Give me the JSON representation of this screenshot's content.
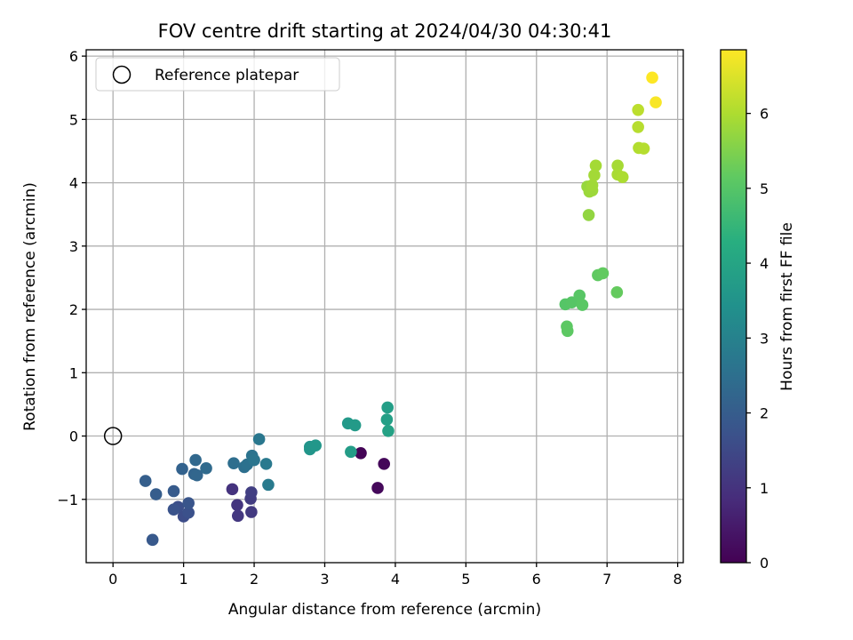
{
  "chart_data": {
    "type": "scatter",
    "title": "FOV centre drift starting at 2024/04/30 04:30:41",
    "xlabel": "Angular distance from reference (arcmin)",
    "ylabel": "Rotation from reference (arcmin)",
    "xlim": [
      -0.38,
      8.08
    ],
    "ylim": [
      -2.0,
      6.1
    ],
    "xticks": [
      0,
      1,
      2,
      3,
      4,
      5,
      6,
      7,
      8
    ],
    "yticks": [
      -1,
      0,
      1,
      2,
      3,
      4,
      5,
      6
    ],
    "xtick_labels": [
      "0",
      "1",
      "2",
      "3",
      "4",
      "5",
      "6",
      "7",
      "8"
    ],
    "ytick_labels": [
      "−1",
      "0",
      "1",
      "2",
      "3",
      "4",
      "5",
      "6"
    ],
    "grid": true,
    "legend": {
      "position": "upper-left",
      "entries": [
        {
          "label": "Reference platepar",
          "marker": "open-circle",
          "color": "#000000"
        }
      ]
    },
    "reference_point": {
      "x": 0,
      "y": 0
    },
    "colorbar": {
      "label": "Hours from first FF file",
      "colormap": "viridis",
      "min": 0,
      "max": 6.85,
      "ticks": [
        0,
        1,
        2,
        3,
        4,
        5,
        6
      ],
      "tick_labels": [
        "0",
        "1",
        "2",
        "3",
        "4",
        "5",
        "6"
      ]
    },
    "points": [
      {
        "x": 3.51,
        "y": -0.27,
        "c": 0.05
      },
      {
        "x": 3.84,
        "y": -0.44,
        "c": 0.1
      },
      {
        "x": 3.75,
        "y": -0.82,
        "c": 0.15
      },
      {
        "x": 1.69,
        "y": -0.84,
        "c": 1.0
      },
      {
        "x": 1.76,
        "y": -1.09,
        "c": 1.05
      },
      {
        "x": 1.77,
        "y": -1.26,
        "c": 1.1
      },
      {
        "x": 1.96,
        "y": -1.2,
        "c": 1.15
      },
      {
        "x": 1.95,
        "y": -0.99,
        "c": 1.2
      },
      {
        "x": 1.96,
        "y": -0.89,
        "c": 1.25
      },
      {
        "x": 1.0,
        "y": -1.27,
        "c": 1.6
      },
      {
        "x": 0.92,
        "y": -1.12,
        "c": 1.65
      },
      {
        "x": 1.07,
        "y": -1.21,
        "c": 1.7
      },
      {
        "x": 0.86,
        "y": -1.16,
        "c": 1.75
      },
      {
        "x": 1.07,
        "y": -1.06,
        "c": 1.8
      },
      {
        "x": 0.56,
        "y": -1.64,
        "c": 1.9
      },
      {
        "x": 0.86,
        "y": -0.87,
        "c": 1.95
      },
      {
        "x": 0.61,
        "y": -0.92,
        "c": 2.0
      },
      {
        "x": 0.46,
        "y": -0.71,
        "c": 2.05
      },
      {
        "x": 0.98,
        "y": -0.52,
        "c": 2.15
      },
      {
        "x": 1.15,
        "y": -0.6,
        "c": 2.2
      },
      {
        "x": 1.19,
        "y": -0.62,
        "c": 2.25
      },
      {
        "x": 1.17,
        "y": -0.38,
        "c": 2.3
      },
      {
        "x": 1.32,
        "y": -0.51,
        "c": 2.35
      },
      {
        "x": 1.71,
        "y": -0.43,
        "c": 2.45
      },
      {
        "x": 1.86,
        "y": -0.49,
        "c": 2.5
      },
      {
        "x": 1.9,
        "y": -0.45,
        "c": 2.55
      },
      {
        "x": 1.97,
        "y": -0.31,
        "c": 2.6
      },
      {
        "x": 2.0,
        "y": -0.38,
        "c": 2.65
      },
      {
        "x": 2.07,
        "y": -0.05,
        "c": 2.7
      },
      {
        "x": 2.17,
        "y": -0.44,
        "c": 2.75
      },
      {
        "x": 2.2,
        "y": -0.77,
        "c": 2.8
      },
      {
        "x": 2.79,
        "y": -0.17,
        "c": 3.5
      },
      {
        "x": 2.79,
        "y": -0.21,
        "c": 3.55
      },
      {
        "x": 2.87,
        "y": -0.15,
        "c": 3.6
      },
      {
        "x": 3.33,
        "y": 0.2,
        "c": 3.65
      },
      {
        "x": 3.43,
        "y": 0.17,
        "c": 3.7
      },
      {
        "x": 3.37,
        "y": -0.25,
        "c": 3.75
      },
      {
        "x": 3.89,
        "y": 0.45,
        "c": 3.8
      },
      {
        "x": 3.88,
        "y": 0.26,
        "c": 3.85
      },
      {
        "x": 3.9,
        "y": 0.08,
        "c": 3.9
      },
      {
        "x": 6.41,
        "y": 2.08,
        "c": 5.0
      },
      {
        "x": 6.5,
        "y": 2.11,
        "c": 5.02
      },
      {
        "x": 6.61,
        "y": 2.22,
        "c": 5.05
      },
      {
        "x": 6.65,
        "y": 2.07,
        "c": 5.08
      },
      {
        "x": 6.43,
        "y": 1.73,
        "c": 5.1
      },
      {
        "x": 6.44,
        "y": 1.66,
        "c": 5.12
      },
      {
        "x": 6.87,
        "y": 2.54,
        "c": 5.15
      },
      {
        "x": 6.94,
        "y": 2.57,
        "c": 5.18
      },
      {
        "x": 7.14,
        "y": 2.27,
        "c": 5.2
      },
      {
        "x": 6.74,
        "y": 3.49,
        "c": 5.7
      },
      {
        "x": 6.72,
        "y": 3.94,
        "c": 5.75
      },
      {
        "x": 6.75,
        "y": 3.86,
        "c": 5.8
      },
      {
        "x": 6.79,
        "y": 3.88,
        "c": 5.82
      },
      {
        "x": 6.79,
        "y": 3.96,
        "c": 5.85
      },
      {
        "x": 6.82,
        "y": 4.12,
        "c": 5.88
      },
      {
        "x": 6.84,
        "y": 4.27,
        "c": 5.9
      },
      {
        "x": 7.15,
        "y": 4.27,
        "c": 5.92
      },
      {
        "x": 7.15,
        "y": 4.13,
        "c": 5.95
      },
      {
        "x": 7.22,
        "y": 4.09,
        "c": 5.98
      },
      {
        "x": 7.45,
        "y": 4.55,
        "c": 6.05
      },
      {
        "x": 7.52,
        "y": 4.54,
        "c": 6.08
      },
      {
        "x": 7.44,
        "y": 4.88,
        "c": 6.1
      },
      {
        "x": 7.44,
        "y": 5.15,
        "c": 6.15
      },
      {
        "x": 7.69,
        "y": 5.27,
        "c": 6.8
      },
      {
        "x": 7.64,
        "y": 5.66,
        "c": 6.85
      }
    ]
  }
}
